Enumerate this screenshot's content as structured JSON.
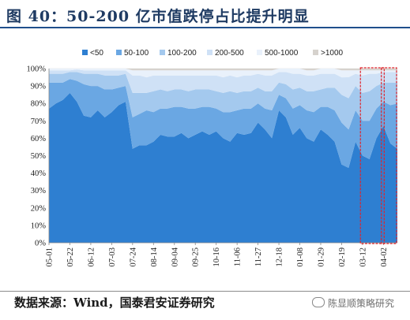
{
  "header": {
    "title": "图 40：50-200 亿市值跌停占比提升明显"
  },
  "footer": {
    "source": "数据来源：Wind，国泰君安证券研究",
    "watermark": "陈显顺策略研究"
  },
  "colors": {
    "highlight_box": "#e0242b",
    "series": [
      "#2e7fd1",
      "#6aa7e3",
      "#a4c9ee",
      "#cfe1f6",
      "#e9f1fb",
      "#d6d2cd"
    ]
  },
  "chart_data": {
    "type": "area",
    "stacked": true,
    "normalized": true,
    "title": "50-200 亿市值跌停占比提升明显",
    "ylim": [
      0,
      1
    ],
    "y_ticks": [
      "0%",
      "10%",
      "20%",
      "30%",
      "40%",
      "50%",
      "60%",
      "70%",
      "80%",
      "90%",
      "100%"
    ],
    "x_ticks": [
      "05-01",
      "05-22",
      "06-12",
      "07-03",
      "07-24",
      "08-14",
      "09-04",
      "09-25",
      "10-16",
      "11-06",
      "11-27",
      "12-18",
      "01-08",
      "01-29",
      "02-19",
      "03-12",
      "04-02"
    ],
    "legend": [
      "<50",
      "50-100",
      "100-200",
      "200-500",
      "500-1000",
      ">1000"
    ],
    "legend_position": "top",
    "highlight_regions": [
      [
        "03-12",
        "04-02"
      ],
      [
        "04-02",
        "04-18"
      ]
    ],
    "x": [
      "05-01",
      "05-08",
      "05-15",
      "05-22",
      "05-29",
      "06-05",
      "06-12",
      "06-19",
      "06-26",
      "07-03",
      "07-10",
      "07-17",
      "07-24",
      "07-31",
      "08-07",
      "08-14",
      "08-21",
      "08-28",
      "09-04",
      "09-11",
      "09-18",
      "09-25",
      "10-02",
      "10-09",
      "10-16",
      "10-23",
      "10-30",
      "11-06",
      "11-13",
      "11-20",
      "11-27",
      "12-04",
      "12-11",
      "12-18",
      "12-25",
      "01-01",
      "01-08",
      "01-15",
      "01-22",
      "01-29",
      "02-05",
      "02-12",
      "02-19",
      "02-26",
      "03-05",
      "03-12",
      "03-19",
      "03-26",
      "04-02",
      "04-09",
      "04-16"
    ],
    "series": [
      {
        "name": "<50",
        "values": [
          0.77,
          0.8,
          0.82,
          0.86,
          0.81,
          0.73,
          0.72,
          0.76,
          0.72,
          0.75,
          0.79,
          0.81,
          0.54,
          0.56,
          0.56,
          0.58,
          0.62,
          0.61,
          0.61,
          0.63,
          0.6,
          0.62,
          0.64,
          0.62,
          0.64,
          0.6,
          0.58,
          0.63,
          0.62,
          0.63,
          0.69,
          0.65,
          0.6,
          0.76,
          0.72,
          0.62,
          0.66,
          0.6,
          0.58,
          0.65,
          0.62,
          0.58,
          0.45,
          0.43,
          0.58,
          0.5,
          0.48,
          0.6,
          0.67,
          0.57,
          0.54
        ]
      },
      {
        "name": "50-100",
        "values": [
          0.15,
          0.12,
          0.1,
          0.08,
          0.12,
          0.18,
          0.18,
          0.14,
          0.16,
          0.13,
          0.1,
          0.09,
          0.18,
          0.18,
          0.2,
          0.17,
          0.15,
          0.16,
          0.17,
          0.15,
          0.17,
          0.15,
          0.14,
          0.16,
          0.13,
          0.15,
          0.17,
          0.13,
          0.15,
          0.14,
          0.11,
          0.12,
          0.16,
          0.09,
          0.11,
          0.15,
          0.13,
          0.16,
          0.17,
          0.13,
          0.16,
          0.18,
          0.24,
          0.22,
          0.18,
          0.2,
          0.22,
          0.17,
          0.14,
          0.22,
          0.26
        ]
      },
      {
        "name": "100-200",
        "values": [
          0.05,
          0.05,
          0.05,
          0.04,
          0.05,
          0.06,
          0.07,
          0.07,
          0.08,
          0.08,
          0.07,
          0.07,
          0.14,
          0.12,
          0.1,
          0.12,
          0.11,
          0.1,
          0.1,
          0.1,
          0.1,
          0.11,
          0.1,
          0.1,
          0.1,
          0.11,
          0.12,
          0.1,
          0.1,
          0.1,
          0.09,
          0.1,
          0.11,
          0.07,
          0.08,
          0.11,
          0.1,
          0.11,
          0.12,
          0.1,
          0.11,
          0.13,
          0.16,
          0.18,
          0.14,
          0.16,
          0.17,
          0.13,
          0.11,
          0.13,
          0.12
        ]
      },
      {
        "name": "200-500",
        "values": [
          0.02,
          0.02,
          0.02,
          0.01,
          0.015,
          0.02,
          0.02,
          0.02,
          0.03,
          0.03,
          0.03,
          0.02,
          0.1,
          0.1,
          0.09,
          0.09,
          0.08,
          0.09,
          0.08,
          0.08,
          0.09,
          0.08,
          0.08,
          0.08,
          0.09,
          0.09,
          0.09,
          0.09,
          0.09,
          0.09,
          0.08,
          0.09,
          0.09,
          0.06,
          0.07,
          0.09,
          0.08,
          0.09,
          0.09,
          0.09,
          0.08,
          0.08,
          0.1,
          0.12,
          0.07,
          0.1,
          0.1,
          0.07,
          0.06,
          0.06,
          0.06
        ]
      },
      {
        "name": "500-1000",
        "values": [
          0.01,
          0.01,
          0.01,
          0.01,
          0.005,
          0.01,
          0.01,
          0.01,
          0.01,
          0.01,
          0.01,
          0.01,
          0.03,
          0.03,
          0.04,
          0.03,
          0.03,
          0.03,
          0.03,
          0.03,
          0.03,
          0.03,
          0.03,
          0.03,
          0.03,
          0.04,
          0.03,
          0.04,
          0.03,
          0.03,
          0.02,
          0.03,
          0.03,
          0.02,
          0.02,
          0.03,
          0.03,
          0.03,
          0.03,
          0.03,
          0.03,
          0.03,
          0.04,
          0.04,
          0.02,
          0.03,
          0.02,
          0.02,
          0.01,
          0.01,
          0.01
        ]
      },
      {
        "name": ">1000",
        "values": [
          0.0,
          0.0,
          0.0,
          0.0,
          0.0,
          0.0,
          0.0,
          0.0,
          0.0,
          0.0,
          0.0,
          0.0,
          0.01,
          0.01,
          0.01,
          0.01,
          0.01,
          0.01,
          0.01,
          0.01,
          0.01,
          0.01,
          0.01,
          0.01,
          0.01,
          0.01,
          0.01,
          0.01,
          0.01,
          0.01,
          0.01,
          0.01,
          0.01,
          0.0,
          0.0,
          0.0,
          0.0,
          0.01,
          0.01,
          0.0,
          0.0,
          0.0,
          0.01,
          0.01,
          0.01,
          0.01,
          0.01,
          0.01,
          0.01,
          0.01,
          0.01
        ]
      }
    ]
  }
}
